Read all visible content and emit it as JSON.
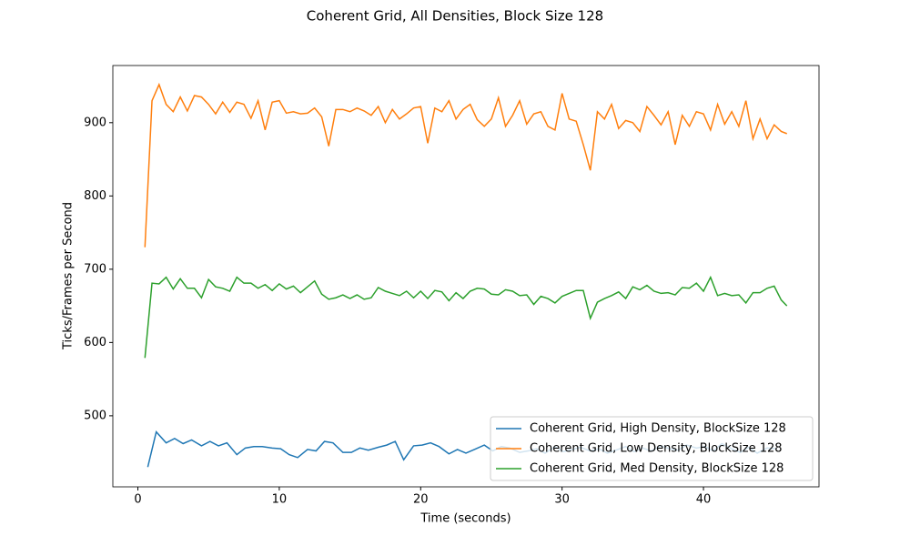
{
  "chart_data": {
    "type": "line",
    "title": "Coherent Grid, All Densities, Block Size 128",
    "xlabel": "Time (seconds)",
    "ylabel": "Ticks/Frames per Second",
    "xlim": [
      -1.77,
      48.17
    ],
    "ylim": [
      403,
      978
    ],
    "xticks": [
      0,
      10,
      20,
      30,
      40
    ],
    "yticks": [
      500,
      600,
      700,
      800,
      900
    ],
    "grid": false,
    "legend": "lower right",
    "series": [
      {
        "name": "Coherent Grid, High Density, BlockSize 128",
        "color": "#1f77b4",
        "x": [
          0.7,
          1.3,
          2.0,
          2.6,
          3.2,
          3.8,
          4.5,
          5.1,
          5.7,
          6.3,
          7.0,
          7.6,
          8.2,
          8.8,
          9.5,
          10.1,
          10.7,
          11.3,
          12.0,
          12.6,
          13.2,
          13.8,
          14.5,
          15.1,
          15.7,
          16.3,
          17.0,
          17.6,
          18.2,
          18.8,
          19.5,
          20.1,
          20.7,
          21.3,
          22.0,
          22.6,
          23.2,
          23.8,
          24.5,
          25.1,
          25.7,
          26.3,
          27.0,
          27.6,
          28.2,
          28.8,
          29.5,
          30.1,
          30.7,
          31.3,
          32.0,
          32.6,
          33.2,
          33.8,
          34.5,
          35.1,
          35.7,
          36.3,
          37.0,
          37.6,
          38.2,
          38.8,
          39.5,
          40.1,
          40.7,
          41.3,
          42.0,
          42.6,
          43.2,
          43.8,
          44.5,
          45.1
        ],
        "values": [
          430,
          478,
          463,
          469,
          462,
          467,
          459,
          465,
          459,
          463,
          447,
          456,
          458,
          458,
          456,
          455,
          447,
          443,
          454,
          452,
          465,
          463,
          450,
          450,
          456,
          453,
          457,
          460,
          465,
          440,
          459,
          460,
          463,
          458,
          448,
          454,
          449,
          454,
          460,
          452,
          458,
          456,
          450,
          452,
          455,
          449,
          458,
          451,
          454,
          457,
          452,
          455,
          449,
          453,
          458,
          451,
          456,
          452,
          459,
          455,
          453,
          460,
          456,
          458,
          452,
          462,
          455,
          450,
          457,
          449,
          456,
          455
        ]
      },
      {
        "name": "Coherent Grid, Low Density, BlockSize 128",
        "color": "#ff7f0e",
        "x": [
          0.5,
          1,
          1.5,
          2,
          2.5,
          3,
          3.5,
          4,
          4.5,
          5,
          5.5,
          6,
          6.5,
          7,
          7.5,
          8,
          8.5,
          9,
          9.5,
          10,
          10.5,
          11,
          11.5,
          12,
          12.5,
          13,
          13.5,
          14,
          14.5,
          15,
          15.5,
          16,
          16.5,
          17,
          17.5,
          18,
          18.5,
          19,
          19.5,
          20,
          20.5,
          21,
          21.5,
          22,
          22.5,
          23,
          23.5,
          24,
          24.5,
          25,
          25.5,
          26,
          26.5,
          27,
          27.5,
          28,
          28.5,
          29,
          29.5,
          30,
          30.5,
          31,
          31.5,
          32,
          32.5,
          33,
          33.5,
          34,
          34.5,
          35,
          35.5,
          36,
          36.5,
          37,
          37.5,
          38,
          38.5,
          39,
          39.5,
          40,
          40.5,
          41,
          41.5,
          42,
          42.5,
          43,
          43.5,
          44,
          44.5,
          45,
          45.5,
          45.9
        ],
        "values": [
          730,
          930,
          952,
          925,
          915,
          935,
          916,
          937,
          935,
          925,
          912,
          928,
          914,
          928,
          925,
          906,
          930,
          890,
          928,
          930,
          913,
          915,
          912,
          913,
          920,
          908,
          868,
          918,
          918,
          915,
          920,
          916,
          910,
          922,
          900,
          918,
          905,
          912,
          920,
          922,
          872,
          920,
          915,
          930,
          905,
          918,
          925,
          904,
          895,
          905,
          934,
          895,
          910,
          930,
          898,
          912,
          915,
          895,
          890,
          940,
          905,
          902,
          870,
          835,
          915,
          905,
          925,
          892,
          903,
          900,
          888,
          922,
          910,
          897,
          915,
          870,
          910,
          895,
          915,
          912,
          890,
          925,
          898,
          915,
          895,
          930,
          878,
          905,
          878,
          897,
          888,
          885
        ]
      },
      {
        "name": "Coherent Grid, Med Density, BlockSize 128",
        "color": "#2ca02c",
        "x": [
          0.5,
          1,
          1.5,
          2,
          2.5,
          3,
          3.5,
          4,
          4.5,
          5,
          5.5,
          6,
          6.5,
          7,
          7.5,
          8,
          8.5,
          9,
          9.5,
          10,
          10.5,
          11,
          11.5,
          12,
          12.5,
          13,
          13.5,
          14,
          14.5,
          15,
          15.5,
          16,
          16.5,
          17,
          17.5,
          18,
          18.5,
          19,
          19.5,
          20,
          20.5,
          21,
          21.5,
          22,
          22.5,
          23,
          23.5,
          24,
          24.5,
          25,
          25.5,
          26,
          26.5,
          27,
          27.5,
          28,
          28.5,
          29,
          29.5,
          30,
          30.5,
          31,
          31.5,
          32,
          32.5,
          33,
          33.5,
          34,
          34.5,
          35,
          35.5,
          36,
          36.5,
          37,
          37.5,
          38,
          38.5,
          39,
          39.5,
          40,
          40.5,
          41,
          41.5,
          42,
          42.5,
          43,
          43.5,
          44,
          44.5,
          45,
          45.5,
          45.9
        ],
        "values": [
          579,
          681,
          680,
          689,
          673,
          687,
          674,
          674,
          661,
          686,
          676,
          674,
          670,
          689,
          681,
          681,
          674,
          679,
          671,
          680,
          673,
          677,
          668,
          676,
          684,
          666,
          659,
          661,
          665,
          660,
          665,
          659,
          661,
          675,
          670,
          667,
          664,
          670,
          661,
          670,
          660,
          671,
          669,
          657,
          668,
          660,
          670,
          674,
          673,
          666,
          665,
          672,
          670,
          664,
          665,
          652,
          663,
          660,
          654,
          663,
          667,
          671,
          671,
          633,
          655,
          660,
          664,
          669,
          660,
          676,
          672,
          678,
          670,
          667,
          668,
          665,
          675,
          674,
          681,
          670,
          689,
          664,
          667,
          664,
          665,
          654,
          668,
          668,
          674,
          677,
          658,
          650
        ]
      }
    ]
  }
}
